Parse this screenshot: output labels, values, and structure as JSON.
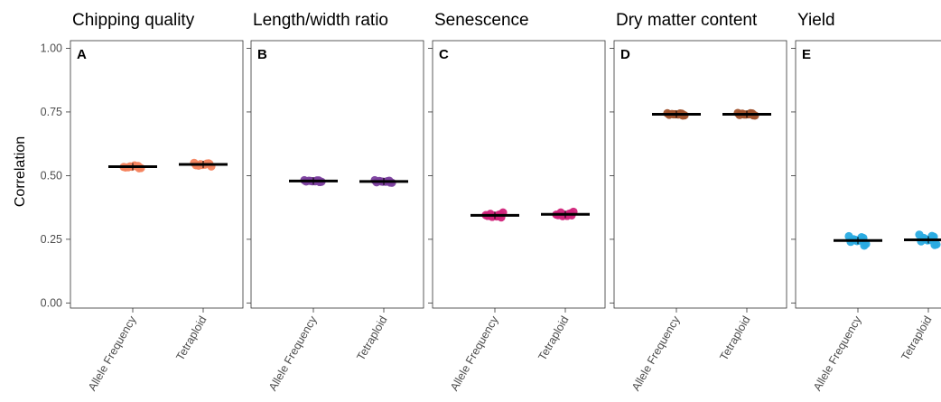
{
  "ylabel": "Correlation",
  "yticks": [
    "0.00",
    "0.25",
    "0.50",
    "0.75",
    "1.00"
  ],
  "ylim": [
    -0.02,
    1.03
  ],
  "chart_data": [
    {
      "type": "scatter",
      "panel": "A",
      "title": "Chipping quality",
      "color": "#f4845f",
      "categories": [
        "Allele Frequency",
        "Tetraploid"
      ],
      "series": [
        {
          "category": "Allele Frequency",
          "mean": 0.535,
          "values": [
            0.532,
            0.538,
            0.536,
            0.53,
            0.534,
            0.54,
            0.533,
            0.529,
            0.537,
            0.535
          ]
        },
        {
          "category": "Tetraploid",
          "mean": 0.544,
          "values": [
            0.541,
            0.548,
            0.545,
            0.536,
            0.55,
            0.543,
            0.539,
            0.546,
            0.547,
            0.542
          ]
        }
      ]
    },
    {
      "type": "scatter",
      "panel": "B",
      "title": "Length/width ratio",
      "color": "#7b3f9e",
      "categories": [
        "Allele Frequency",
        "Tetraploid"
      ],
      "series": [
        {
          "category": "Allele Frequency",
          "mean": 0.479,
          "values": [
            0.477,
            0.481,
            0.479,
            0.476,
            0.482,
            0.478,
            0.48,
            0.475,
            0.481,
            0.478
          ]
        },
        {
          "category": "Tetraploid",
          "mean": 0.477,
          "values": [
            0.474,
            0.48,
            0.477,
            0.472,
            0.482,
            0.476,
            0.479,
            0.473,
            0.478,
            0.476
          ]
        }
      ]
    },
    {
      "type": "scatter",
      "panel": "C",
      "title": "Senescence",
      "color": "#d1237a",
      "categories": [
        "Allele Frequency",
        "Tetraploid"
      ],
      "series": [
        {
          "category": "Allele Frequency",
          "mean": 0.344,
          "values": [
            0.342,
            0.348,
            0.338,
            0.355,
            0.345,
            0.34,
            0.35,
            0.336,
            0.346,
            0.343
          ]
        },
        {
          "category": "Tetraploid",
          "mean": 0.348,
          "values": [
            0.345,
            0.352,
            0.341,
            0.358,
            0.347,
            0.342,
            0.355,
            0.344,
            0.35,
            0.346
          ]
        }
      ]
    },
    {
      "type": "scatter",
      "panel": "D",
      "title": "Dry matter content",
      "color": "#a0522d",
      "categories": [
        "Allele Frequency",
        "Tetraploid"
      ],
      "series": [
        {
          "category": "Allele Frequency",
          "mean": 0.741,
          "values": [
            0.739,
            0.743,
            0.741,
            0.737,
            0.745,
            0.74,
            0.742,
            0.736,
            0.744,
            0.741
          ]
        },
        {
          "category": "Tetraploid",
          "mean": 0.741,
          "values": [
            0.738,
            0.744,
            0.74,
            0.736,
            0.746,
            0.741,
            0.743,
            0.737,
            0.745,
            0.74
          ]
        }
      ]
    },
    {
      "type": "scatter",
      "panel": "E",
      "title": "Yield",
      "color": "#29abe2",
      "categories": [
        "Allele Frequency",
        "Tetraploid"
      ],
      "series": [
        {
          "category": "Allele Frequency",
          "mean": 0.245,
          "values": [
            0.24,
            0.255,
            0.248,
            0.232,
            0.262,
            0.245,
            0.25,
            0.225,
            0.258,
            0.243
          ]
        },
        {
          "category": "Tetraploid",
          "mean": 0.248,
          "values": [
            0.242,
            0.26,
            0.25,
            0.23,
            0.268,
            0.247,
            0.255,
            0.228,
            0.263,
            0.246
          ]
        }
      ]
    }
  ]
}
